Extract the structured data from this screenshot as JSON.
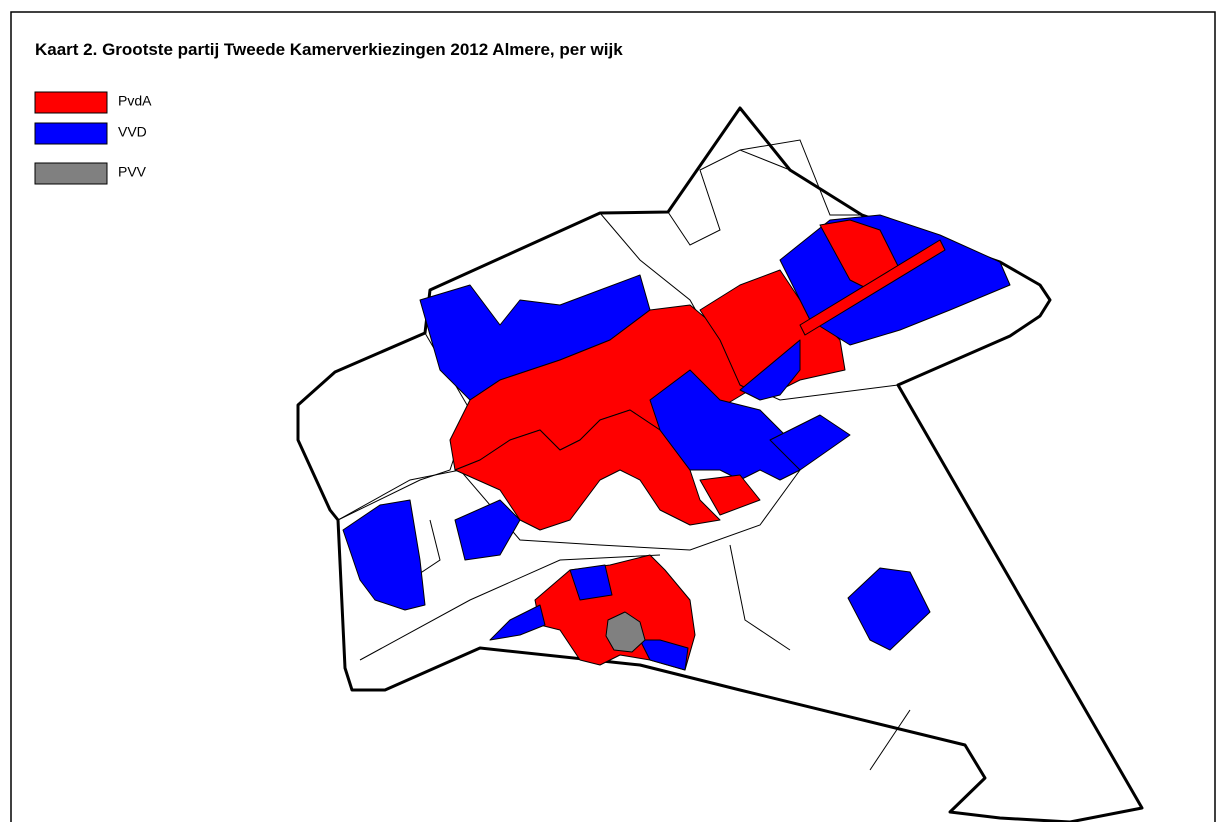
{
  "title": "Kaart 2. Grootste partij Tweede Kamerverkiezingen 2012 Almere, per wijk",
  "legend": [
    {
      "label": "PvdA",
      "color": "#ff0000"
    },
    {
      "label": "VVD",
      "color": "#0000ff"
    },
    {
      "label": "PVV",
      "color": "#808080"
    }
  ]
}
